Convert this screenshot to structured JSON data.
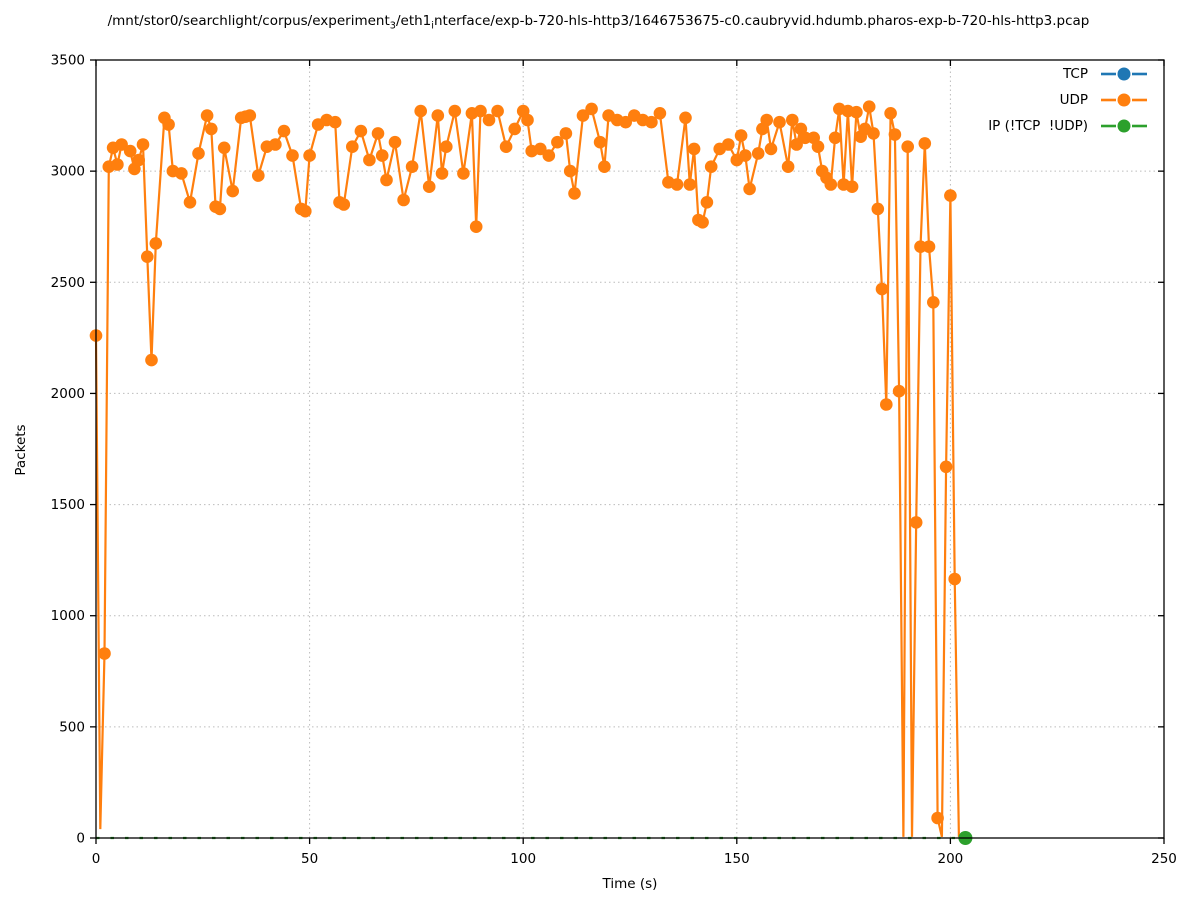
{
  "title": {
    "part1": "/mnt/stor0/searchlight/corpus/experiment",
    "sub1": "3",
    "part2": "/eth1",
    "sub2": "i",
    "part3": "nterface/exp-b-720-hls-http3/1646753675-c0.caubryvid.hdumb.pharos-exp-b-720-hls-http3.pcap"
  },
  "axis": {
    "x_label": "Time (s)",
    "y_label": "Packets"
  },
  "legend": {
    "entries": [
      {
        "label": "TCP",
        "color": "#1f77b4"
      },
      {
        "label": "UDP",
        "color": "#ff7f0e"
      },
      {
        "label": "IP (!TCP  !UDP)",
        "color": "#2ca02c"
      }
    ]
  },
  "chart_data": {
    "type": "line",
    "title": "/mnt/stor0/searchlight/corpus/experiment_3/eth1_interface/exp-b-720-hls-http3/1646753675-c0.caubryvid.hdumb.pharos-exp-b-720-hls-http3.pcap",
    "xlabel": "Time (s)",
    "ylabel": "Packets",
    "x_range": [
      0,
      250
    ],
    "y_range": [
      0,
      3500
    ],
    "x_ticks": [
      0,
      50,
      100,
      150,
      200,
      250
    ],
    "y_ticks": [
      0,
      500,
      1000,
      1500,
      2000,
      2500,
      3000,
      3500
    ],
    "grid": true,
    "legend_position": "top-right",
    "marker": "filled-circle",
    "series": [
      {
        "name": "TCP",
        "color": "#1f77b4",
        "marker_radius": 6.3,
        "points": []
      },
      {
        "name": "UDP",
        "color": "#ff7f0e",
        "marker_radius": 6.3,
        "points": [
          [
            0,
            2260
          ],
          [
            2,
            830
          ],
          [
            3,
            3020
          ],
          [
            4,
            3105
          ],
          [
            5,
            3030
          ],
          [
            6,
            3120
          ],
          [
            8,
            3090
          ],
          [
            9,
            3010
          ],
          [
            10,
            3050
          ],
          [
            11,
            3120
          ],
          [
            12,
            2615
          ],
          [
            13,
            2150
          ],
          [
            14,
            2675
          ],
          [
            16,
            3240
          ],
          [
            17,
            3210
          ],
          [
            18,
            3000
          ],
          [
            20,
            2990
          ],
          [
            22,
            2860
          ],
          [
            24,
            3080
          ],
          [
            26,
            3250
          ],
          [
            27,
            3190
          ],
          [
            28,
            2840
          ],
          [
            29,
            2830
          ],
          [
            30,
            3105
          ],
          [
            32,
            2910
          ],
          [
            34,
            3240
          ],
          [
            35,
            3245
          ],
          [
            36,
            3250
          ],
          [
            38,
            2980
          ],
          [
            40,
            3110
          ],
          [
            42,
            3120
          ],
          [
            44,
            3180
          ],
          [
            46,
            3070
          ],
          [
            48,
            2830
          ],
          [
            49,
            2820
          ],
          [
            50,
            3070
          ],
          [
            52,
            3210
          ],
          [
            54,
            3230
          ],
          [
            56,
            3220
          ],
          [
            57,
            2860
          ],
          [
            58,
            2850
          ],
          [
            60,
            3110
          ],
          [
            62,
            3180
          ],
          [
            64,
            3050
          ],
          [
            66,
            3170
          ],
          [
            67,
            3070
          ],
          [
            68,
            2960
          ],
          [
            70,
            3130
          ],
          [
            72,
            2870
          ],
          [
            74,
            3020
          ],
          [
            76,
            3270
          ],
          [
            78,
            2930
          ],
          [
            80,
            3250
          ],
          [
            81,
            2990
          ],
          [
            82,
            3110
          ],
          [
            84,
            3270
          ],
          [
            86,
            2990
          ],
          [
            88,
            3260
          ],
          [
            89,
            2750
          ],
          [
            90,
            3270
          ],
          [
            92,
            3230
          ],
          [
            94,
            3270
          ],
          [
            96,
            3110
          ],
          [
            98,
            3190
          ],
          [
            100,
            3270
          ],
          [
            101,
            3230
          ],
          [
            102,
            3090
          ],
          [
            104,
            3100
          ],
          [
            106,
            3070
          ],
          [
            108,
            3130
          ],
          [
            110,
            3170
          ],
          [
            111,
            3000
          ],
          [
            112,
            2900
          ],
          [
            114,
            3250
          ],
          [
            116,
            3280
          ],
          [
            118,
            3130
          ],
          [
            119,
            3020
          ],
          [
            120,
            3250
          ],
          [
            122,
            3230
          ],
          [
            124,
            3220
          ],
          [
            126,
            3250
          ],
          [
            128,
            3230
          ],
          [
            130,
            3220
          ],
          [
            132,
            3260
          ],
          [
            134,
            2950
          ],
          [
            136,
            2940
          ],
          [
            138,
            3240
          ],
          [
            139,
            2940
          ],
          [
            140,
            3100
          ],
          [
            141,
            2780
          ],
          [
            142,
            2770
          ],
          [
            143,
            2860
          ],
          [
            144,
            3020
          ],
          [
            146,
            3100
          ],
          [
            148,
            3120
          ],
          [
            150,
            3050
          ],
          [
            151,
            3160
          ],
          [
            152,
            3070
          ],
          [
            153,
            2920
          ],
          [
            155,
            3080
          ],
          [
            156,
            3190
          ],
          [
            157,
            3230
          ],
          [
            158,
            3100
          ],
          [
            160,
            3220
          ],
          [
            162,
            3020
          ],
          [
            163,
            3230
          ],
          [
            164,
            3120
          ],
          [
            165,
            3190
          ],
          [
            166,
            3150
          ],
          [
            168,
            3150
          ],
          [
            169,
            3110
          ],
          [
            170,
            3000
          ],
          [
            171,
            2970
          ],
          [
            172,
            2940
          ],
          [
            173,
            3150
          ],
          [
            174,
            3280
          ],
          [
            175,
            2940
          ],
          [
            176,
            3270
          ],
          [
            177,
            2930
          ],
          [
            178,
            3265
          ],
          [
            179,
            3155
          ],
          [
            180,
            3190
          ],
          [
            181,
            3290
          ],
          [
            182,
            3170
          ],
          [
            183,
            2830
          ],
          [
            184,
            2470
          ],
          [
            185,
            1950
          ],
          [
            186,
            3260
          ],
          [
            187,
            3165
          ],
          [
            188,
            2010
          ],
          [
            190,
            3110
          ],
          [
            192,
            1420
          ],
          [
            193,
            2660
          ],
          [
            194,
            3125
          ],
          [
            195,
            2660
          ],
          [
            196,
            2410
          ],
          [
            197,
            90
          ],
          [
            199,
            1670
          ],
          [
            200,
            2890
          ],
          [
            201,
            1165
          ]
        ],
        "line_dips_no_marker": [
          [
            1,
            40
          ],
          [
            189,
            5
          ],
          [
            191,
            5
          ],
          [
            198,
            5
          ],
          [
            202,
            5
          ]
        ]
      },
      {
        "name": "IP (!TCP  !UDP)",
        "color": "#2ca02c",
        "dashed": true,
        "marker_radius": 7,
        "line": [
          [
            0,
            0
          ],
          [
            203.5,
            0
          ]
        ],
        "points": [
          [
            203.5,
            0
          ]
        ]
      }
    ]
  }
}
